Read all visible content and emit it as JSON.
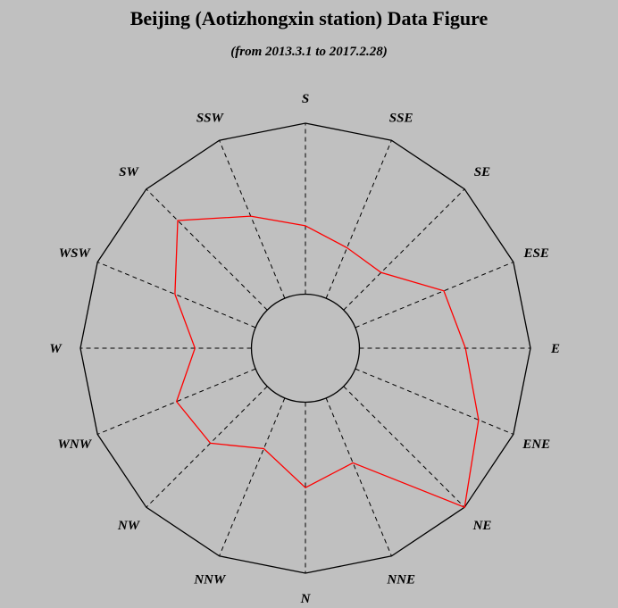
{
  "title": "Beijing (Aotizhongxin station)  Data Figure",
  "subtitle": "(from 2013.3.1 to 2017.2.28)",
  "colors": {
    "background": "#c0c0c0",
    "frame": "#000000",
    "series": "#ff0000"
  },
  "chart_data": {
    "type": "radar",
    "title": "Beijing (Aotizhongxin station)  Data Figure",
    "subtitle": "(from 2013.3.1 to 2017.2.28)",
    "directions": [
      "S",
      "SSE",
      "SE",
      "ESE",
      "E",
      "ENE",
      "NE",
      "NNE",
      "N",
      "NNW",
      "NW",
      "WNW",
      "W",
      "WSW",
      "SW",
      "SSW"
    ],
    "range": [
      0,
      1
    ],
    "inner_circle_fraction": 0.24,
    "grid": "dashed spokes",
    "series": [
      {
        "values": [
          0.4,
          0.32,
          0.31,
          0.56,
          0.62,
          0.78,
          1.0,
          0.41,
          0.5,
          0.32,
          0.47,
          0.5,
          0.33,
          0.51,
          0.74,
          0.52
        ]
      }
    ]
  }
}
